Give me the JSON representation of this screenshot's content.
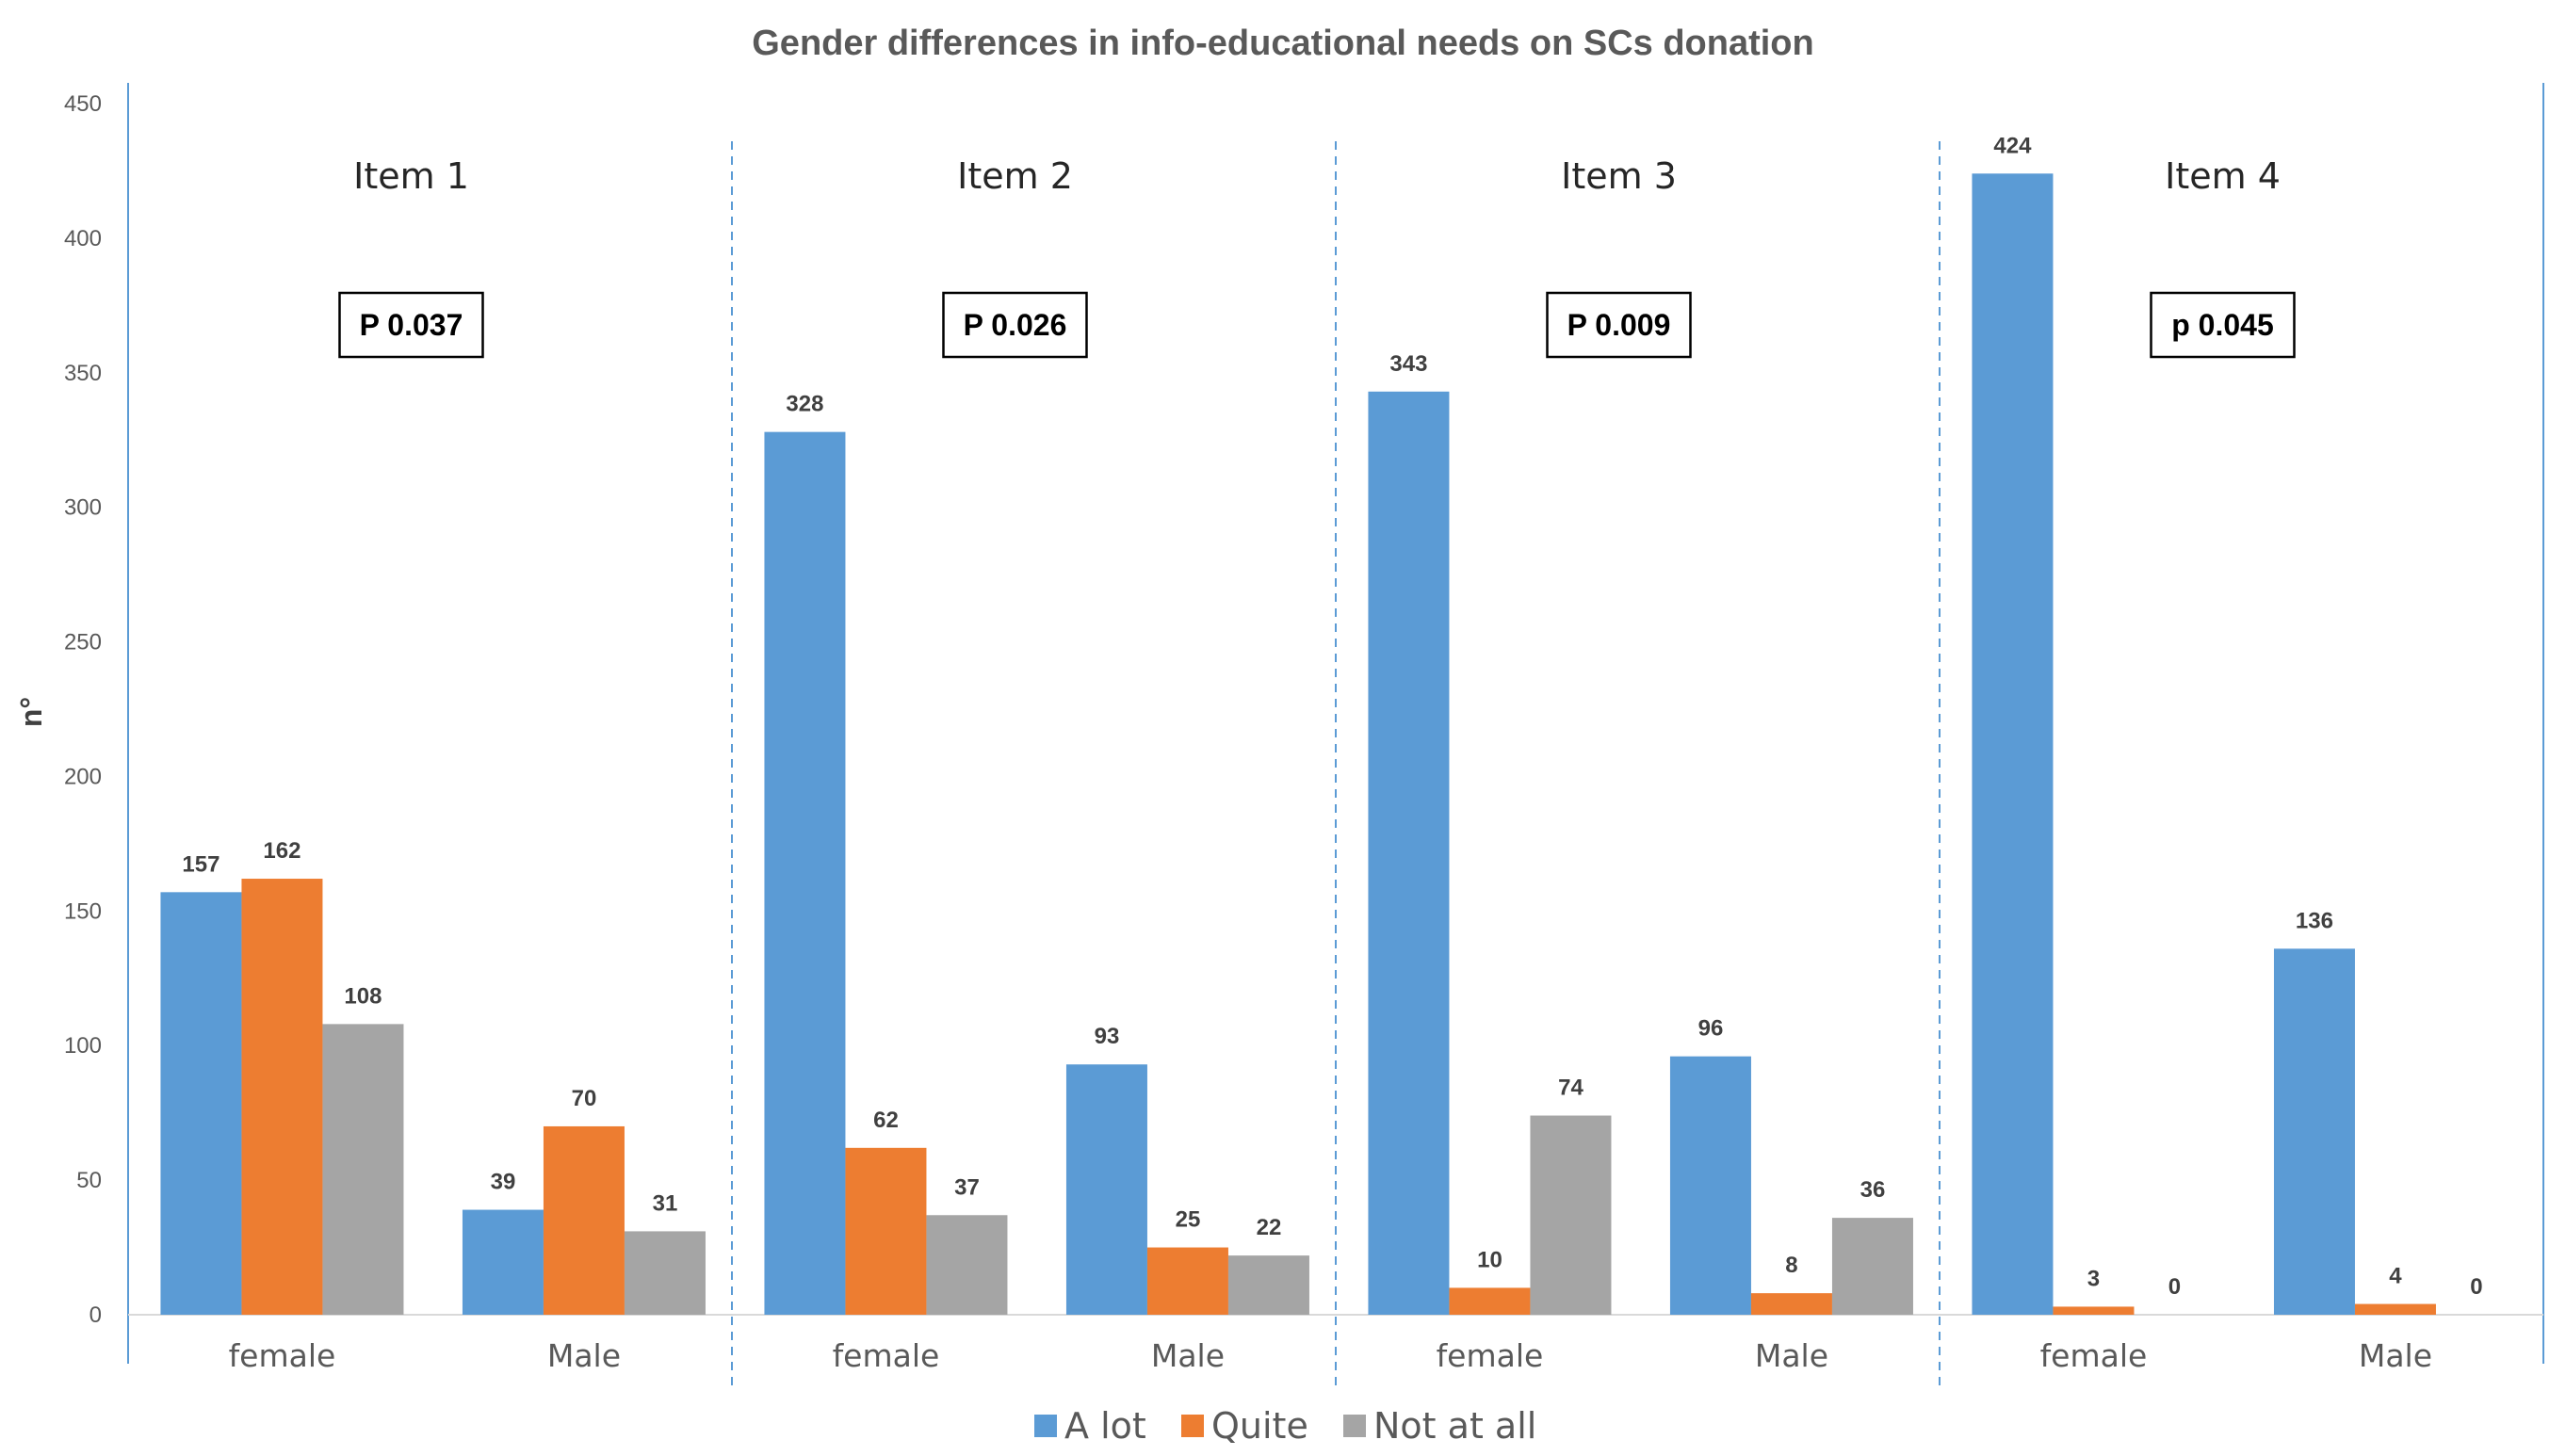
{
  "chart_data": {
    "type": "bar",
    "title": "Gender differences in info-educational needs on SCs donation",
    "xlabel": "",
    "ylabel": "n°",
    "ylim": [
      0,
      450
    ],
    "yticks": [
      0,
      50,
      100,
      150,
      200,
      250,
      300,
      350,
      400,
      450
    ],
    "grid": false,
    "legend_position": "bottom",
    "series_names": [
      "A lot",
      "Quite",
      "Not at all"
    ],
    "colors": {
      "A lot": "#5b9bd5",
      "Quite": "#ed7d31",
      "Not at all": "#a5a5a5"
    },
    "panels": [
      {
        "title": "Item 1",
        "p_value": "P 0.037",
        "groups": [
          {
            "label": "female",
            "values": [
              157,
              162,
              108
            ]
          },
          {
            "label": "Male",
            "values": [
              39,
              70,
              31
            ]
          }
        ]
      },
      {
        "title": "Item 2",
        "p_value": "P 0.026",
        "groups": [
          {
            "label": "female",
            "values": [
              328,
              62,
              37
            ]
          },
          {
            "label": "Male",
            "values": [
              93,
              25,
              22
            ]
          }
        ]
      },
      {
        "title": "Item 3",
        "p_value": "P 0.009",
        "groups": [
          {
            "label": "female",
            "values": [
              343,
              10,
              74
            ]
          },
          {
            "label": "Male",
            "values": [
              96,
              8,
              36
            ]
          }
        ]
      },
      {
        "title": "Item 4",
        "p_value": "p 0.045",
        "groups": [
          {
            "label": "female",
            "values": [
              424,
              3,
              0
            ]
          },
          {
            "label": "Male",
            "values": [
              136,
              4,
              0
            ]
          }
        ]
      }
    ]
  }
}
